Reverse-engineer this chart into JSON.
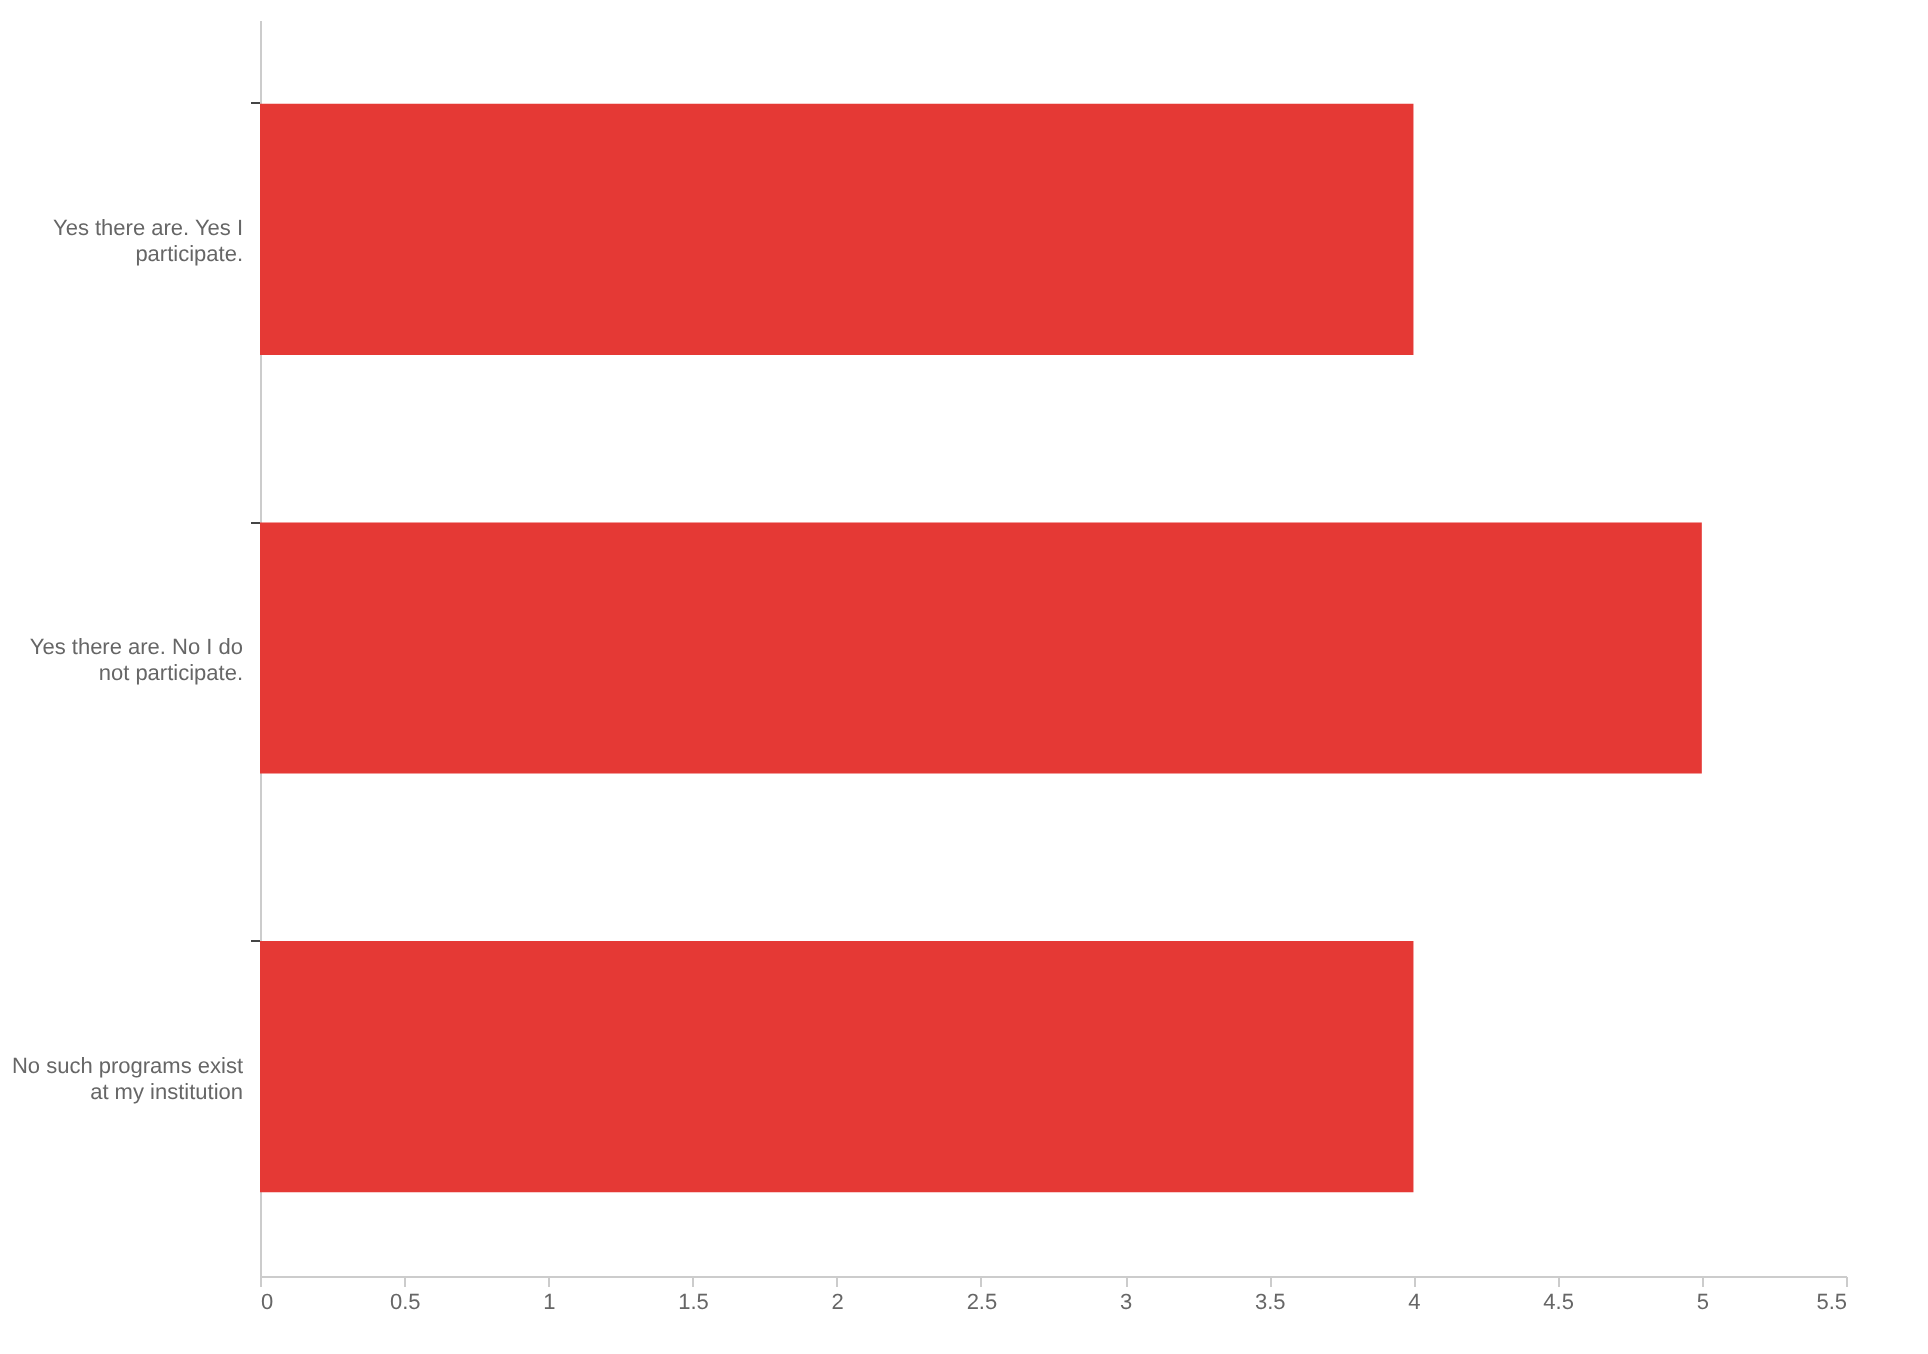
{
  "chart_data": {
    "type": "bar",
    "orientation": "horizontal",
    "categories": [
      "Yes there are. Yes I participate.",
      "Yes there are. No I do not participate.",
      "No such programs exist at my institution"
    ],
    "values": [
      4,
      5,
      4
    ],
    "color": "#e53935",
    "xlim": [
      0,
      5.5
    ],
    "xticks": [
      0,
      0.5,
      1,
      1.5,
      2,
      2.5,
      3,
      3.5,
      4,
      4.5,
      5,
      5.5
    ],
    "grid": false
  }
}
